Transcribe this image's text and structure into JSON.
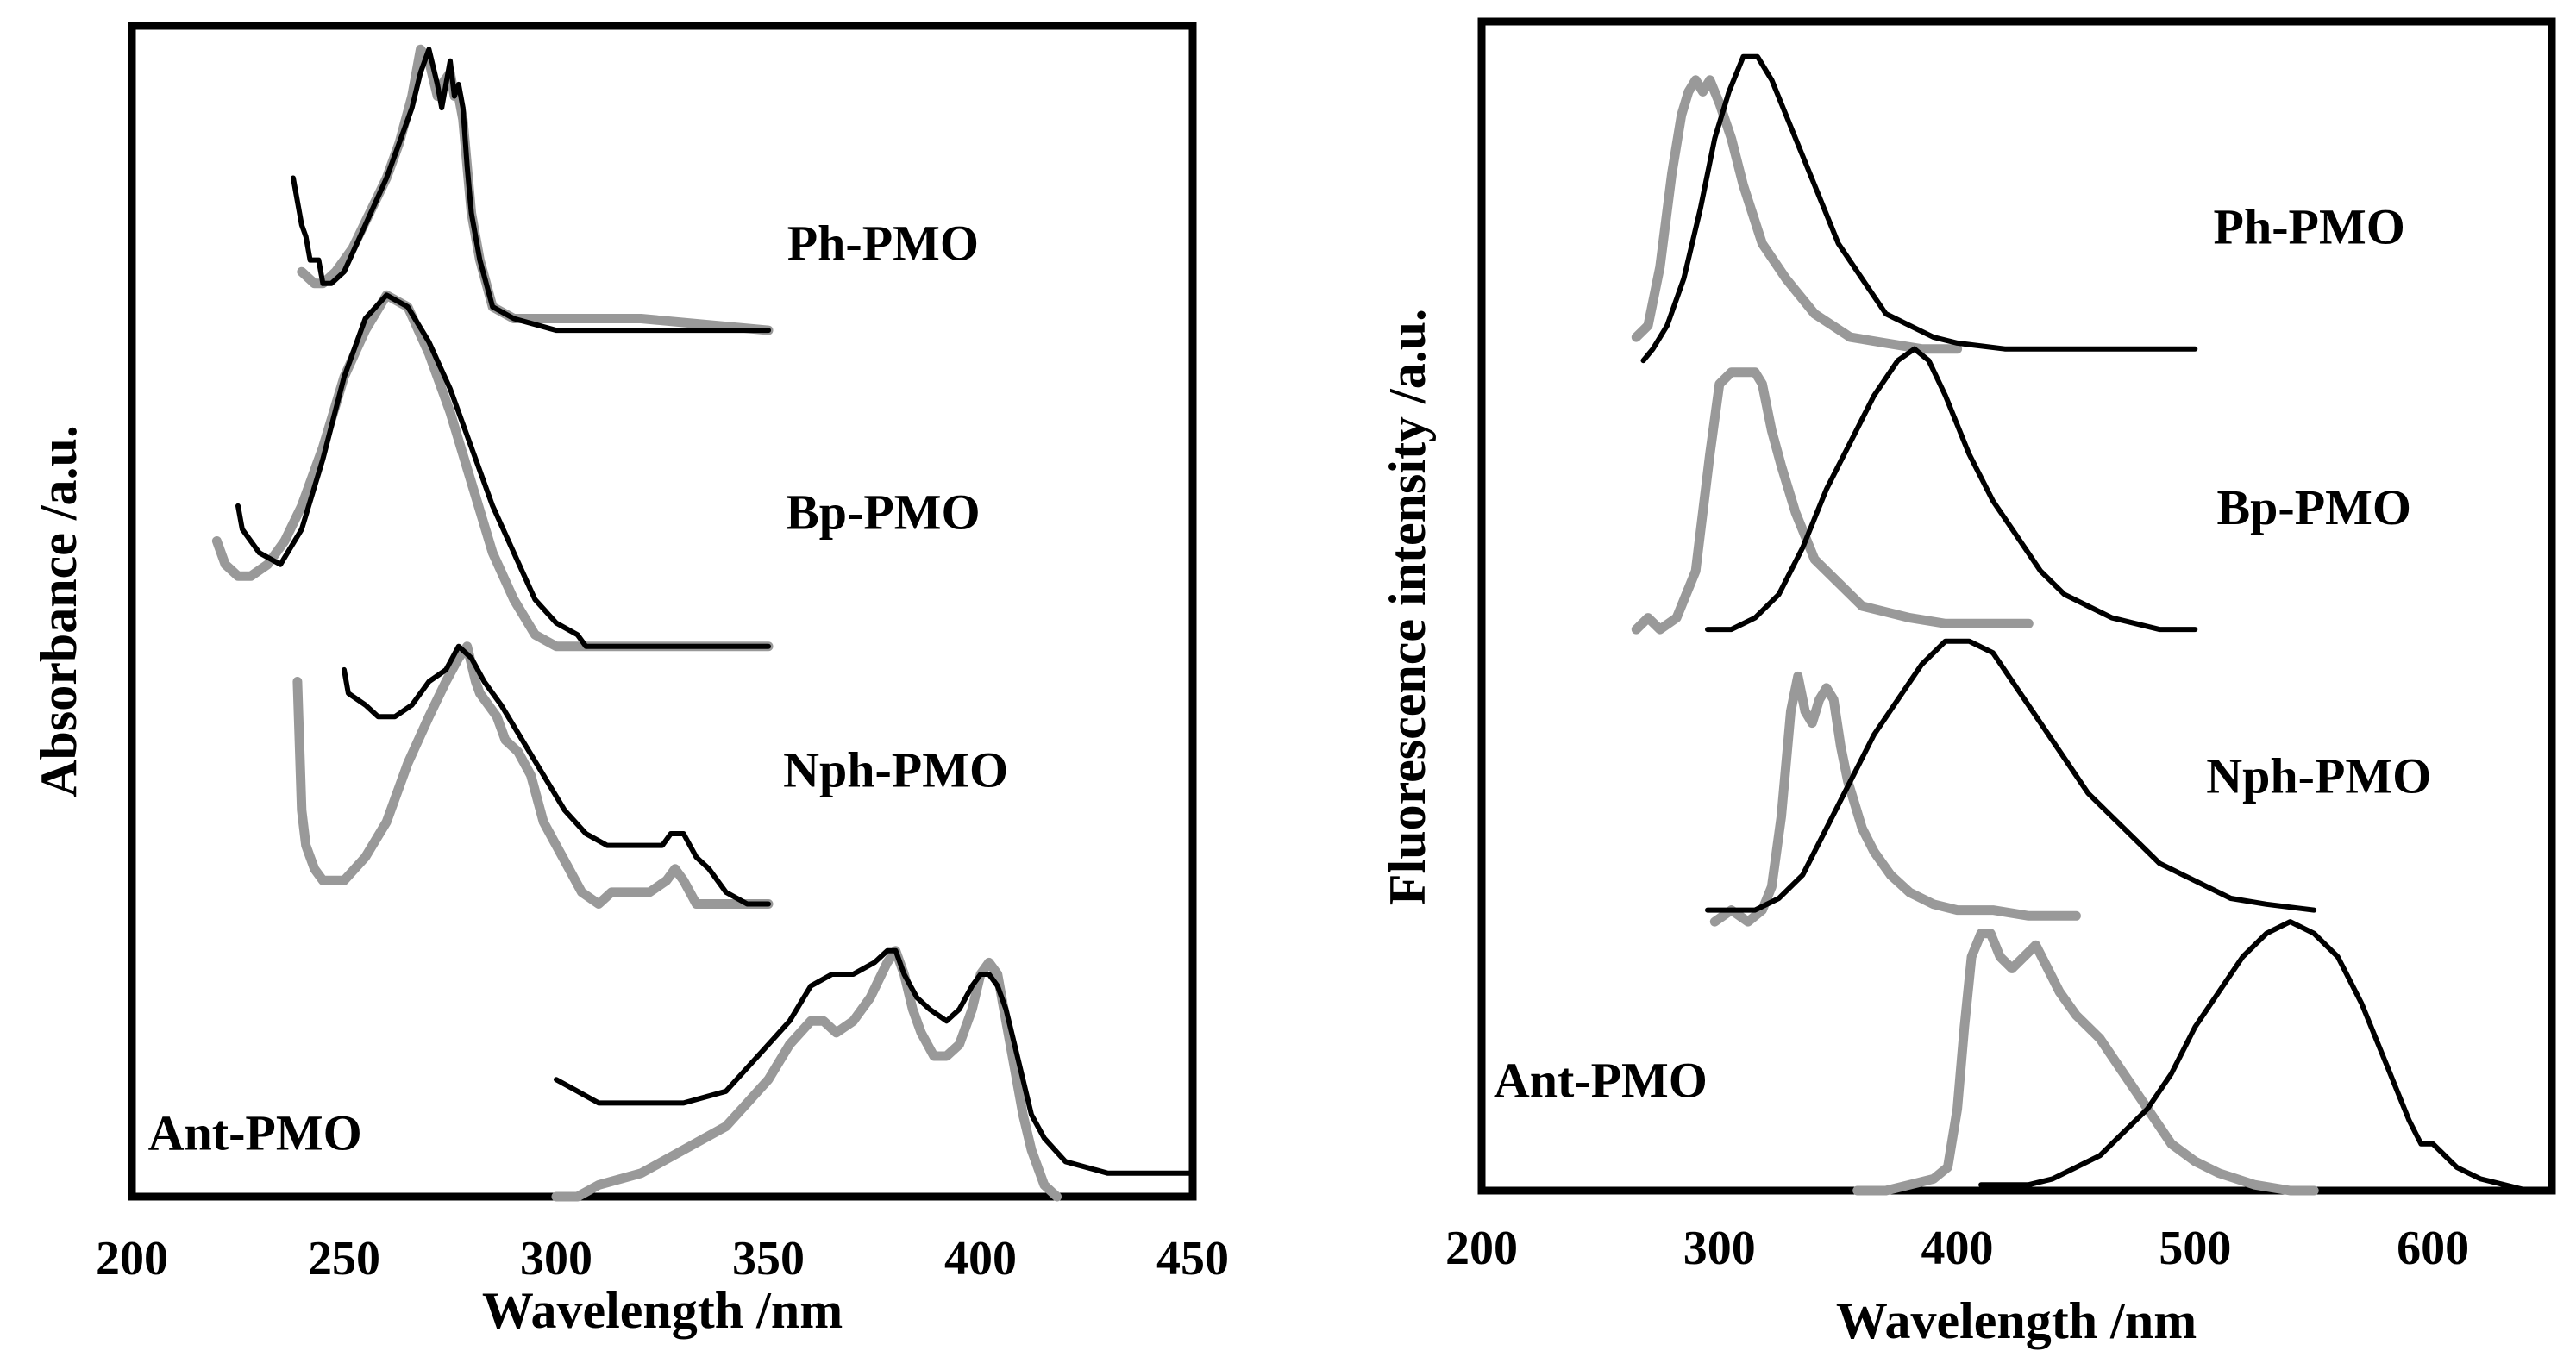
{
  "chart_data": [
    {
      "type": "line",
      "panel": "left",
      "xlabel": "Wavelength /nm",
      "ylabel": "Absorbance /a.u.",
      "xlim": [
        200,
        450
      ],
      "xticks": [
        200,
        250,
        300,
        350,
        400,
        450
      ],
      "xtick_labels": [
        "200",
        "250",
        "300",
        "350",
        "400",
        "450"
      ],
      "ylim": [
        0,
        100
      ],
      "yticks": [],
      "grid": false,
      "colors": {
        "black": "#000000",
        "gray": "#999999"
      },
      "labels": [
        {
          "text": "Ph-PMO",
          "x": 377,
          "y": 81
        },
        {
          "text": "Bp-PMO",
          "x": 377,
          "y": 58
        },
        {
          "text": "Nph-PMO",
          "x": 380,
          "y": 36
        },
        {
          "text": "Ant-PMO",
          "x": 229,
          "y": 5
        }
      ],
      "series": [
        {
          "name": "Ph-PMO black",
          "color": "black",
          "x": [
            238,
            240,
            241,
            242,
            244,
            245,
            247,
            250,
            255,
            260,
            263,
            266,
            268,
            270,
            272,
            273,
            275,
            276,
            277,
            278,
            279,
            280,
            282,
            285,
            290,
            300,
            320,
            350
          ],
          "y": [
            87,
            83,
            82,
            80,
            80,
            78,
            78,
            79,
            83,
            87,
            90,
            93,
            96,
            98,
            95,
            93,
            97,
            94,
            95,
            93,
            88,
            84,
            80,
            76,
            75,
            74,
            74,
            74
          ]
        },
        {
          "name": "Ph-PMO gray",
          "color": "gray",
          "x": [
            240,
            243,
            245,
            248,
            252,
            256,
            260,
            263,
            266,
            268,
            270,
            272,
            273,
            275,
            276,
            277,
            278,
            279,
            280,
            282,
            285,
            290,
            300,
            320,
            350
          ],
          "y": [
            79,
            78,
            78,
            79,
            81,
            84,
            87,
            90,
            94,
            98,
            97,
            94,
            95,
            96,
            94,
            94,
            92,
            88,
            84,
            80,
            76,
            75,
            75,
            75,
            74
          ]
        },
        {
          "name": "Bp-PMO black",
          "color": "black",
          "x": [
            225,
            226,
            230,
            235,
            240,
            245,
            250,
            255,
            260,
            265,
            270,
            275,
            280,
            285,
            290,
            295,
            300,
            305,
            307,
            350
          ],
          "y": [
            59,
            57,
            55,
            54,
            57,
            63,
            70,
            75,
            77,
            76,
            73,
            69,
            64,
            59,
            55,
            51,
            49,
            48,
            47,
            47
          ]
        },
        {
          "name": "Bp-PMO gray",
          "color": "gray",
          "x": [
            220,
            222,
            225,
            228,
            232,
            236,
            240,
            245,
            250,
            255,
            260,
            265,
            270,
            275,
            280,
            285,
            290,
            295,
            300,
            305,
            350
          ],
          "y": [
            56,
            54,
            53,
            53,
            54,
            56,
            59,
            64,
            70,
            74,
            77,
            76,
            72,
            67,
            61,
            55,
            51,
            48,
            47,
            47,
            47
          ]
        },
        {
          "name": "Nph-PMO black",
          "color": "black",
          "x": [
            250,
            251,
            255,
            258,
            262,
            266,
            270,
            274,
            277,
            280,
            283,
            287,
            292,
            297,
            302,
            307,
            312,
            318,
            325,
            327,
            330,
            333,
            336,
            340,
            345,
            350
          ],
          "y": [
            45,
            43,
            42,
            41,
            41,
            42,
            44,
            45,
            47,
            46,
            44,
            42,
            39,
            36,
            33,
            31,
            30,
            30,
            30,
            31,
            31,
            29,
            28,
            26,
            25,
            25
          ]
        },
        {
          "name": "Nph-PMO gray",
          "color": "gray",
          "x": [
            239,
            240,
            241,
            243,
            245,
            250,
            255,
            260,
            265,
            270,
            274,
            277,
            279,
            281,
            282,
            284,
            286,
            288,
            291,
            294,
            297,
            300,
            303,
            306,
            310,
            313,
            318,
            322,
            326,
            328,
            330,
            333,
            336,
            340,
            345,
            350
          ],
          "y": [
            44,
            33,
            30,
            28,
            27,
            27,
            29,
            32,
            37,
            41,
            44,
            46,
            47,
            44,
            43,
            42,
            41,
            39,
            38,
            36,
            32,
            30,
            28,
            26,
            25,
            26,
            26,
            26,
            27,
            28,
            27,
            25,
            25,
            25,
            25,
            25
          ]
        },
        {
          "name": "Ant-PMO black",
          "color": "black",
          "x": [
            300,
            305,
            310,
            320,
            330,
            340,
            345,
            350,
            355,
            360,
            365,
            370,
            375,
            378,
            380,
            382,
            385,
            388,
            392,
            395,
            398,
            400,
            402,
            404,
            406,
            408,
            410,
            412,
            415,
            420,
            430,
            440,
            450
          ],
          "y": [
            10,
            9,
            8,
            8,
            8,
            9,
            11,
            13,
            15,
            18,
            19,
            19,
            20,
            21,
            21,
            19,
            17,
            16,
            15,
            16,
            18,
            19,
            19,
            18,
            16,
            13,
            10,
            7,
            5,
            3,
            2,
            2,
            2
          ]
        },
        {
          "name": "Ant-PMO gray",
          "color": "gray",
          "x": [
            300,
            305,
            310,
            320,
            330,
            340,
            345,
            350,
            355,
            360,
            363,
            366,
            370,
            374,
            378,
            380,
            382,
            384,
            386,
            389,
            392,
            395,
            398,
            400,
            402,
            404,
            406,
            408,
            410,
            412,
            415,
            418
          ],
          "y": [
            0,
            0,
            1,
            2,
            4,
            6,
            8,
            10,
            13,
            15,
            15,
            14,
            15,
            17,
            20,
            21,
            19,
            16,
            14,
            12,
            12,
            13,
            16,
            19,
            20,
            19,
            15,
            11,
            7,
            4,
            1,
            0
          ]
        }
      ]
    },
    {
      "type": "line",
      "panel": "right",
      "xlabel": "Wavelength /nm",
      "ylabel": "Fluorescence intensity /a.u.",
      "xlim": [
        200,
        650
      ],
      "xticks": [
        200,
        300,
        400,
        500,
        600
      ],
      "xtick_labels": [
        "200",
        "300",
        "400",
        "500",
        "600"
      ],
      "ylim": [
        0,
        100
      ],
      "yticks": [],
      "grid": false,
      "colors": {
        "black": "#000000",
        "gray": "#999999"
      },
      "labels": [
        {
          "text": "Ph-PMO",
          "x": 548,
          "y": 82
        },
        {
          "text": "Bp-PMO",
          "x": 550,
          "y": 58
        },
        {
          "text": "Nph-PMO",
          "x": 552,
          "y": 35
        },
        {
          "text": "Ant-PMO",
          "x": 250,
          "y": 9
        }
      ],
      "series": [
        {
          "name": "Ph-PMO black",
          "color": "black",
          "x": [
            268,
            272,
            278,
            285,
            292,
            298,
            304,
            310,
            316,
            322,
            330,
            340,
            350,
            360,
            370,
            380,
            390,
            400,
            420,
            450,
            500
          ],
          "y": [
            71,
            72,
            74,
            78,
            84,
            90,
            94,
            97,
            97,
            95,
            91,
            86,
            81,
            78,
            75,
            74,
            73,
            72.5,
            72,
            72,
            72
          ]
        },
        {
          "name": "Ph-PMO gray",
          "color": "gray",
          "x": [
            265,
            270,
            275,
            280,
            284,
            287,
            290,
            293,
            296,
            300,
            305,
            310,
            318,
            328,
            340,
            355,
            370,
            385,
            400
          ],
          "y": [
            73,
            74,
            79,
            87,
            92,
            94,
            95,
            94,
            95,
            93,
            90,
            86,
            81,
            78,
            75,
            73,
            72.5,
            72,
            72
          ]
        },
        {
          "name": "Bp-PMO black",
          "color": "black",
          "x": [
            295,
            305,
            315,
            325,
            335,
            345,
            355,
            365,
            375,
            382,
            388,
            395,
            405,
            415,
            425,
            435,
            445,
            455,
            465,
            475,
            485,
            500
          ],
          "y": [
            48,
            48,
            49,
            51,
            55,
            60,
            64,
            68,
            71,
            72,
            71,
            68,
            63,
            59,
            56,
            53,
            51,
            50,
            49,
            48.5,
            48,
            48
          ]
        },
        {
          "name": "Bp-PMO gray",
          "color": "gray",
          "x": [
            265,
            270,
            275,
            282,
            290,
            296,
            300,
            305,
            310,
            315,
            318,
            322,
            326,
            332,
            340,
            350,
            360,
            370,
            380,
            395,
            410,
            430
          ],
          "y": [
            48,
            49,
            48,
            49,
            53,
            63,
            69,
            70,
            70,
            70,
            69,
            65,
            62,
            58,
            54,
            52,
            50,
            49.5,
            49,
            48.5,
            48.5,
            48.5
          ]
        },
        {
          "name": "Nph-PMO black",
          "color": "black",
          "x": [
            295,
            305,
            315,
            325,
            335,
            345,
            355,
            365,
            375,
            385,
            395,
            405,
            415,
            425,
            435,
            445,
            455,
            465,
            475,
            485,
            495,
            505,
            515,
            530,
            550
          ],
          "y": [
            24,
            24,
            24,
            25,
            27,
            31,
            35,
            39,
            42,
            45,
            47,
            47,
            46,
            43,
            40,
            37,
            34,
            32,
            30,
            28,
            27,
            26,
            25,
            24.5,
            24
          ]
        },
        {
          "name": "Nph-PMO gray",
          "color": "gray",
          "x": [
            298,
            305,
            312,
            318,
            322,
            326,
            330,
            333,
            336,
            339,
            342,
            345,
            348,
            351,
            354,
            357,
            360,
            365,
            372,
            380,
            390,
            400,
            415,
            430,
            450
          ],
          "y": [
            23,
            24,
            23,
            24,
            26,
            32,
            41,
            44,
            41,
            40,
            42,
            43,
            42,
            38,
            35,
            33,
            31,
            29,
            27,
            25.5,
            24.5,
            24,
            24,
            23.5,
            23.5
          ]
        },
        {
          "name": "Ant-PMO black",
          "color": "black",
          "x": [
            410,
            420,
            430,
            440,
            450,
            460,
            470,
            480,
            490,
            500,
            510,
            520,
            530,
            540,
            550,
            560,
            570,
            580,
            590,
            595,
            600,
            605,
            610,
            620,
            630,
            640
          ],
          "y": [
            0.5,
            0.5,
            0.5,
            1,
            2,
            3,
            5,
            7,
            10,
            14,
            17,
            20,
            22,
            23,
            22,
            20,
            16,
            11,
            6,
            4,
            4,
            3,
            2,
            1,
            0.5,
            0
          ]
        },
        {
          "name": "Ant-PMO gray",
          "color": "gray",
          "x": [
            358,
            370,
            380,
            390,
            396,
            400,
            403,
            406,
            410,
            414,
            418,
            423,
            428,
            433,
            438,
            443,
            450,
            460,
            470,
            480,
            490,
            500,
            510,
            525,
            540,
            550
          ],
          "y": [
            0,
            0,
            0.5,
            1,
            2,
            7,
            14,
            20,
            22,
            22,
            20,
            19,
            20,
            21,
            19,
            17,
            15,
            13,
            10,
            7,
            4,
            2.5,
            1.5,
            0.5,
            0,
            0
          ]
        }
      ]
    }
  ]
}
